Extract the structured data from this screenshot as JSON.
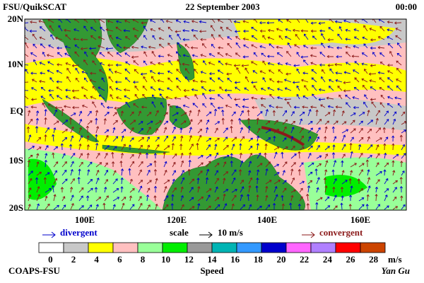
{
  "header": {
    "left": "FSU/QuikSCAT",
    "center": "22 September 2003",
    "right": "00:00"
  },
  "map": {
    "lat_labels": [
      "20N",
      "10N",
      "EQ",
      "10S",
      "20S"
    ],
    "lon_labels": [
      "100E",
      "120E",
      "140E",
      "160E"
    ]
  },
  "legend": {
    "divergent": "divergent",
    "scale": "scale",
    "scale_value": "10 m/s",
    "convergent": "convergent"
  },
  "colorbar": {
    "colors": [
      "#ffffff",
      "#c8c8c8",
      "#ffff00",
      "#ffc0c0",
      "#99ff99",
      "#00ee00",
      "#999999",
      "#00b4b4",
      "#3399ff",
      "#0000cc",
      "#ff66ff",
      "#b080ff",
      "#ff0000",
      "#cc4400",
      "#000000"
    ],
    "labels": [
      "0",
      "2",
      "4",
      "6",
      "8",
      "10",
      "12",
      "14",
      "16",
      "18",
      "20",
      "22",
      "24",
      "26",
      "28"
    ],
    "unit": "m/s",
    "title": "Speed"
  },
  "footer": {
    "left": "COAPS-FSU",
    "right": "Yan Gu"
  }
}
